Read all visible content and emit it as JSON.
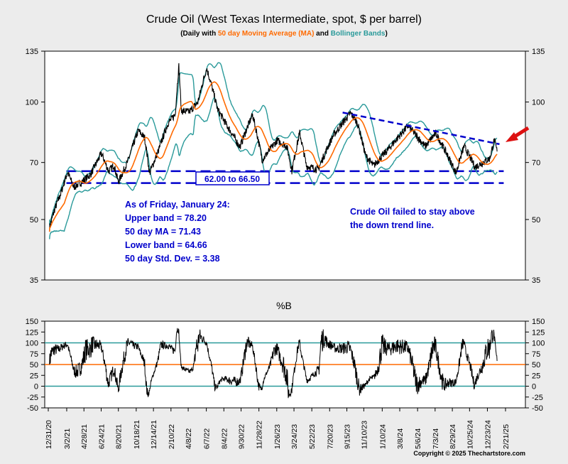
{
  "title": "Crude Oil (West Texas Intermediate, spot, $ per barrel)",
  "subtitle": {
    "prefix": "(Daily with ",
    "ma": "50 day Moving Average (MA)",
    "mid": " and ",
    "bb": "Bollinger Bands",
    "suffix": ")"
  },
  "colors": {
    "price": "#000000",
    "ma": "#ff6a00",
    "bands": "#2a9a9a",
    "annotation": "#0000cc",
    "arrow": "#dd1111",
    "background": "#ececec",
    "panel": "#ffffff"
  },
  "info_box": {
    "lines": [
      "As of Friday, January 24:",
      "Upper band = 78.20",
      "50 day MA = 71.43",
      "Lower band = 64.66",
      "50 day Std. Dev. = 3.38"
    ]
  },
  "range_label": "62.00 to 66.50",
  "trend_note": [
    "Crude Oil failed to stay above",
    "the down trend line."
  ],
  "pctb_title": "%B",
  "copyright": "Copyright © 2025 Thechartstore.com",
  "chart_data": [
    {
      "type": "line",
      "name": "price-panel",
      "yscale": "log",
      "ylim": [
        35,
        135
      ],
      "y_ticks": [
        35,
        50,
        70,
        100,
        135
      ],
      "x_range": [
        "2020-12-31",
        "2025-02-21"
      ],
      "series": [
        {
          "role": "price",
          "points": [
            [
              "2021-01-04",
              47.6
            ],
            [
              "2021-01-20",
              52.8
            ],
            [
              "2021-02-10",
              58.2
            ],
            [
              "2021-03-05",
              66.1
            ],
            [
              "2021-03-25",
              60.5
            ],
            [
              "2021-04-20",
              62.4
            ],
            [
              "2021-05-20",
              65.2
            ],
            [
              "2021-06-25",
              73.8
            ],
            [
              "2021-07-19",
              66.4
            ],
            [
              "2021-08-05",
              69.0
            ],
            [
              "2021-08-20",
              62.3
            ],
            [
              "2021-09-20",
              70.3
            ],
            [
              "2021-10-25",
              84.5
            ],
            [
              "2021-11-15",
              80.9
            ],
            [
              "2021-12-01",
              65.6
            ],
            [
              "2021-12-31",
              75.2
            ],
            [
              "2022-01-31",
              88.2
            ],
            [
              "2022-02-24",
              92.8
            ],
            [
              "2022-03-08",
              123.7
            ],
            [
              "2022-03-16",
              95.0
            ],
            [
              "2022-04-11",
              94.3
            ],
            [
              "2022-05-10",
              99.8
            ],
            [
              "2022-06-08",
              122.1
            ],
            [
              "2022-07-14",
              95.8
            ],
            [
              "2022-08-16",
              86.5
            ],
            [
              "2022-09-26",
              76.7
            ],
            [
              "2022-11-07",
              92.7
            ],
            [
              "2022-12-09",
              71.0
            ],
            [
              "2023-01-27",
              79.7
            ],
            [
              "2023-02-28",
              77.1
            ],
            [
              "2023-03-17",
              66.7
            ],
            [
              "2023-04-12",
              83.3
            ],
            [
              "2023-05-04",
              68.6
            ],
            [
              "2023-06-12",
              67.1
            ],
            [
              "2023-07-31",
              81.8
            ],
            [
              "2023-09-27",
              93.7
            ],
            [
              "2023-10-20",
              88.3
            ],
            [
              "2023-11-16",
              72.9
            ],
            [
              "2023-12-12",
              68.6
            ],
            [
              "2024-01-31",
              75.8
            ],
            [
              "2024-04-05",
              86.9
            ],
            [
              "2024-05-31",
              76.9
            ],
            [
              "2024-07-05",
              83.2
            ],
            [
              "2024-09-10",
              65.8
            ],
            [
              "2024-10-07",
              77.1
            ],
            [
              "2024-11-12",
              68.1
            ],
            [
              "2024-12-31",
              71.7
            ],
            [
              "2025-01-15",
              80.0
            ],
            [
              "2025-01-24",
              74.7
            ]
          ]
        },
        {
          "role": "ma",
          "name": "50 day Moving Average (MA)"
        },
        {
          "role": "upper",
          "name": "Bollinger Bands"
        },
        {
          "role": "lower",
          "name": "Bollinger Bands"
        }
      ],
      "reference_lines": [
        {
          "y": 66.5,
          "from": "2021-03-01",
          "to": "2025-02-15",
          "style": "dashed"
        },
        {
          "y": 62.0,
          "from": "2021-03-01",
          "to": "2025-02-15",
          "style": "dashed"
        }
      ],
      "trendline": {
        "from": [
          "2023-09-01",
          94.0
        ],
        "to": [
          "2025-02-01",
          78.0
        ],
        "style": "dashed"
      }
    },
    {
      "type": "line",
      "name": "percent-b-panel",
      "title": "%B",
      "ylim": [
        -50,
        150
      ],
      "y_ticks": [
        -50,
        -25,
        0,
        25,
        50,
        75,
        100,
        125,
        150
      ],
      "x_ticks": [
        "12/31/20",
        "3/2/21",
        "4/28/21",
        "6/24/21",
        "8/20/21",
        "10/18/21",
        "12/14/21",
        "2/10/22",
        "4/8/22",
        "6/7/22",
        "8/4/22",
        "9/30/22",
        "11/28/22",
        "1/26/23",
        "3/24/23",
        "5/22/23",
        "7/20/23",
        "9/15/23",
        "11/10/23",
        "1/10/24",
        "3/8/24",
        "5/6/24",
        "7/3/24",
        "8/29/24",
        "10/25/24",
        "12/23/24",
        "2/21/25"
      ],
      "reference_lines": [
        {
          "y": 100,
          "color": "#2a9a9a"
        },
        {
          "y": 50,
          "color": "#ff6a00"
        },
        {
          "y": 0,
          "color": "#2a9a9a"
        }
      ]
    }
  ]
}
